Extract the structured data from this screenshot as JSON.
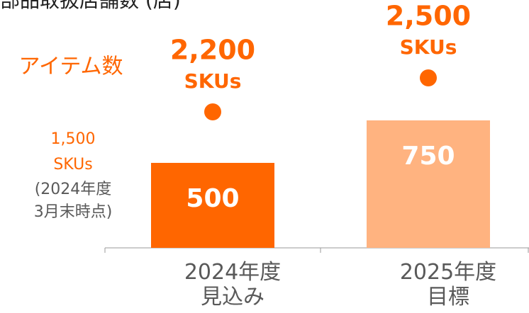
{
  "chart_data": {
    "type": "bar",
    "title": "部品取扱店舗数 (店)",
    "categories": [
      "2024年度\n見込み",
      "2025年度\n目標"
    ],
    "values": [
      500,
      750
    ],
    "colors": [
      "#ff6600",
      "#ffb380"
    ],
    "ylim": [
      0,
      1000
    ],
    "series": [
      {
        "name": "アイテム数",
        "color": "#ff6600",
        "axis": "y2",
        "values": [
          2200,
          2500
        ],
        "value_labels": [
          "2,200",
          "2,500"
        ],
        "unit": "SKUs"
      }
    ],
    "y2lim": [
      1000,
      2500
    ],
    "annotations": [
      "1,500\nSKUs",
      "(2024年度\n3月末時点)"
    ]
  }
}
